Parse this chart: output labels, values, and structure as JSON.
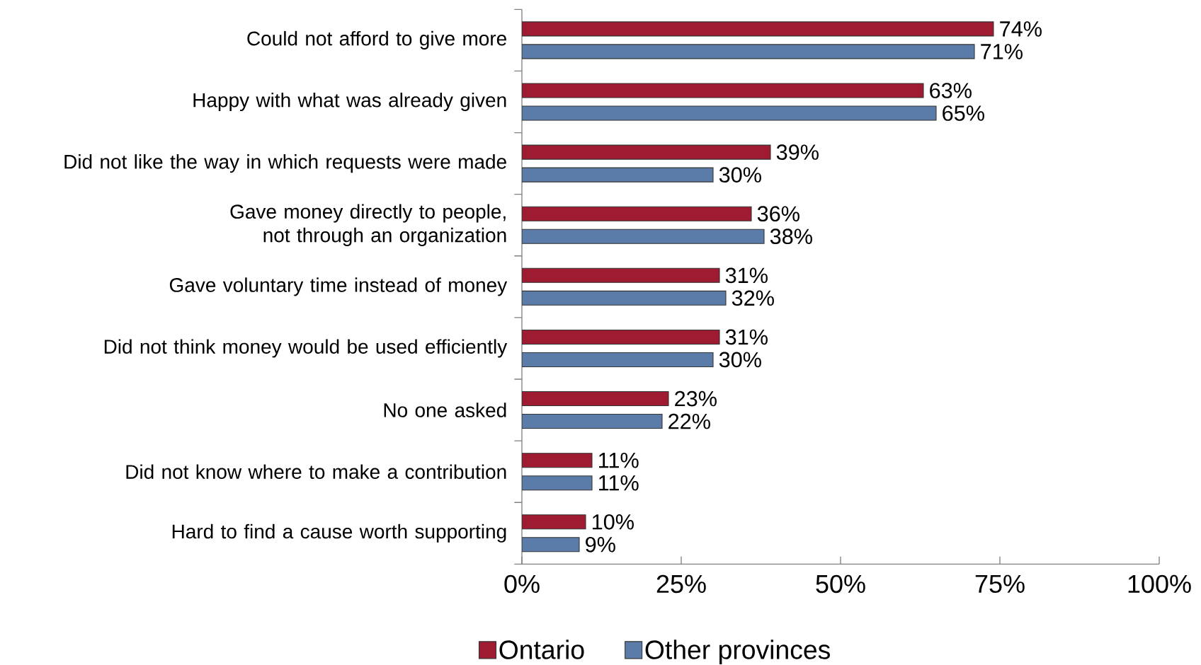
{
  "chart_data": {
    "type": "bar",
    "orientation": "horizontal",
    "categories": [
      "Could not afford to give more",
      "Happy with what was already given",
      "Did not like the way in which requests were made",
      "Gave money directly to people, not through an organization",
      "Gave voluntary time instead of money",
      "Did not think money would be used efficiently",
      "No one asked",
      "Did not know where to make a contribution",
      "Hard to find a cause worth supporting"
    ],
    "series": [
      {
        "name": "Ontario",
        "color": "#9e1b32",
        "values": [
          74,
          63,
          39,
          36,
          31,
          31,
          23,
          11,
          10
        ],
        "value_labels": [
          "74%",
          "63%",
          "39%",
          "36%",
          "31%",
          "31%",
          "23%",
          "11%",
          "10%"
        ]
      },
      {
        "name": "Other provinces",
        "color": "#5b7ca8",
        "values": [
          71,
          65,
          30,
          38,
          32,
          30,
          22,
          11,
          9
        ],
        "value_labels": [
          "71%",
          "65%",
          "30%",
          "38%",
          "32%",
          "30%",
          "22%",
          "11%",
          "9%"
        ]
      }
    ],
    "xlim": [
      0,
      100
    ],
    "xticks": [
      {
        "value": 0,
        "label": "0%"
      },
      {
        "value": 25,
        "label": "25%"
      },
      {
        "value": 50,
        "label": "50%"
      },
      {
        "value": 75,
        "label": "75%"
      },
      {
        "value": 100,
        "label": "100%"
      }
    ],
    "grid": false,
    "legend": "bottom"
  }
}
